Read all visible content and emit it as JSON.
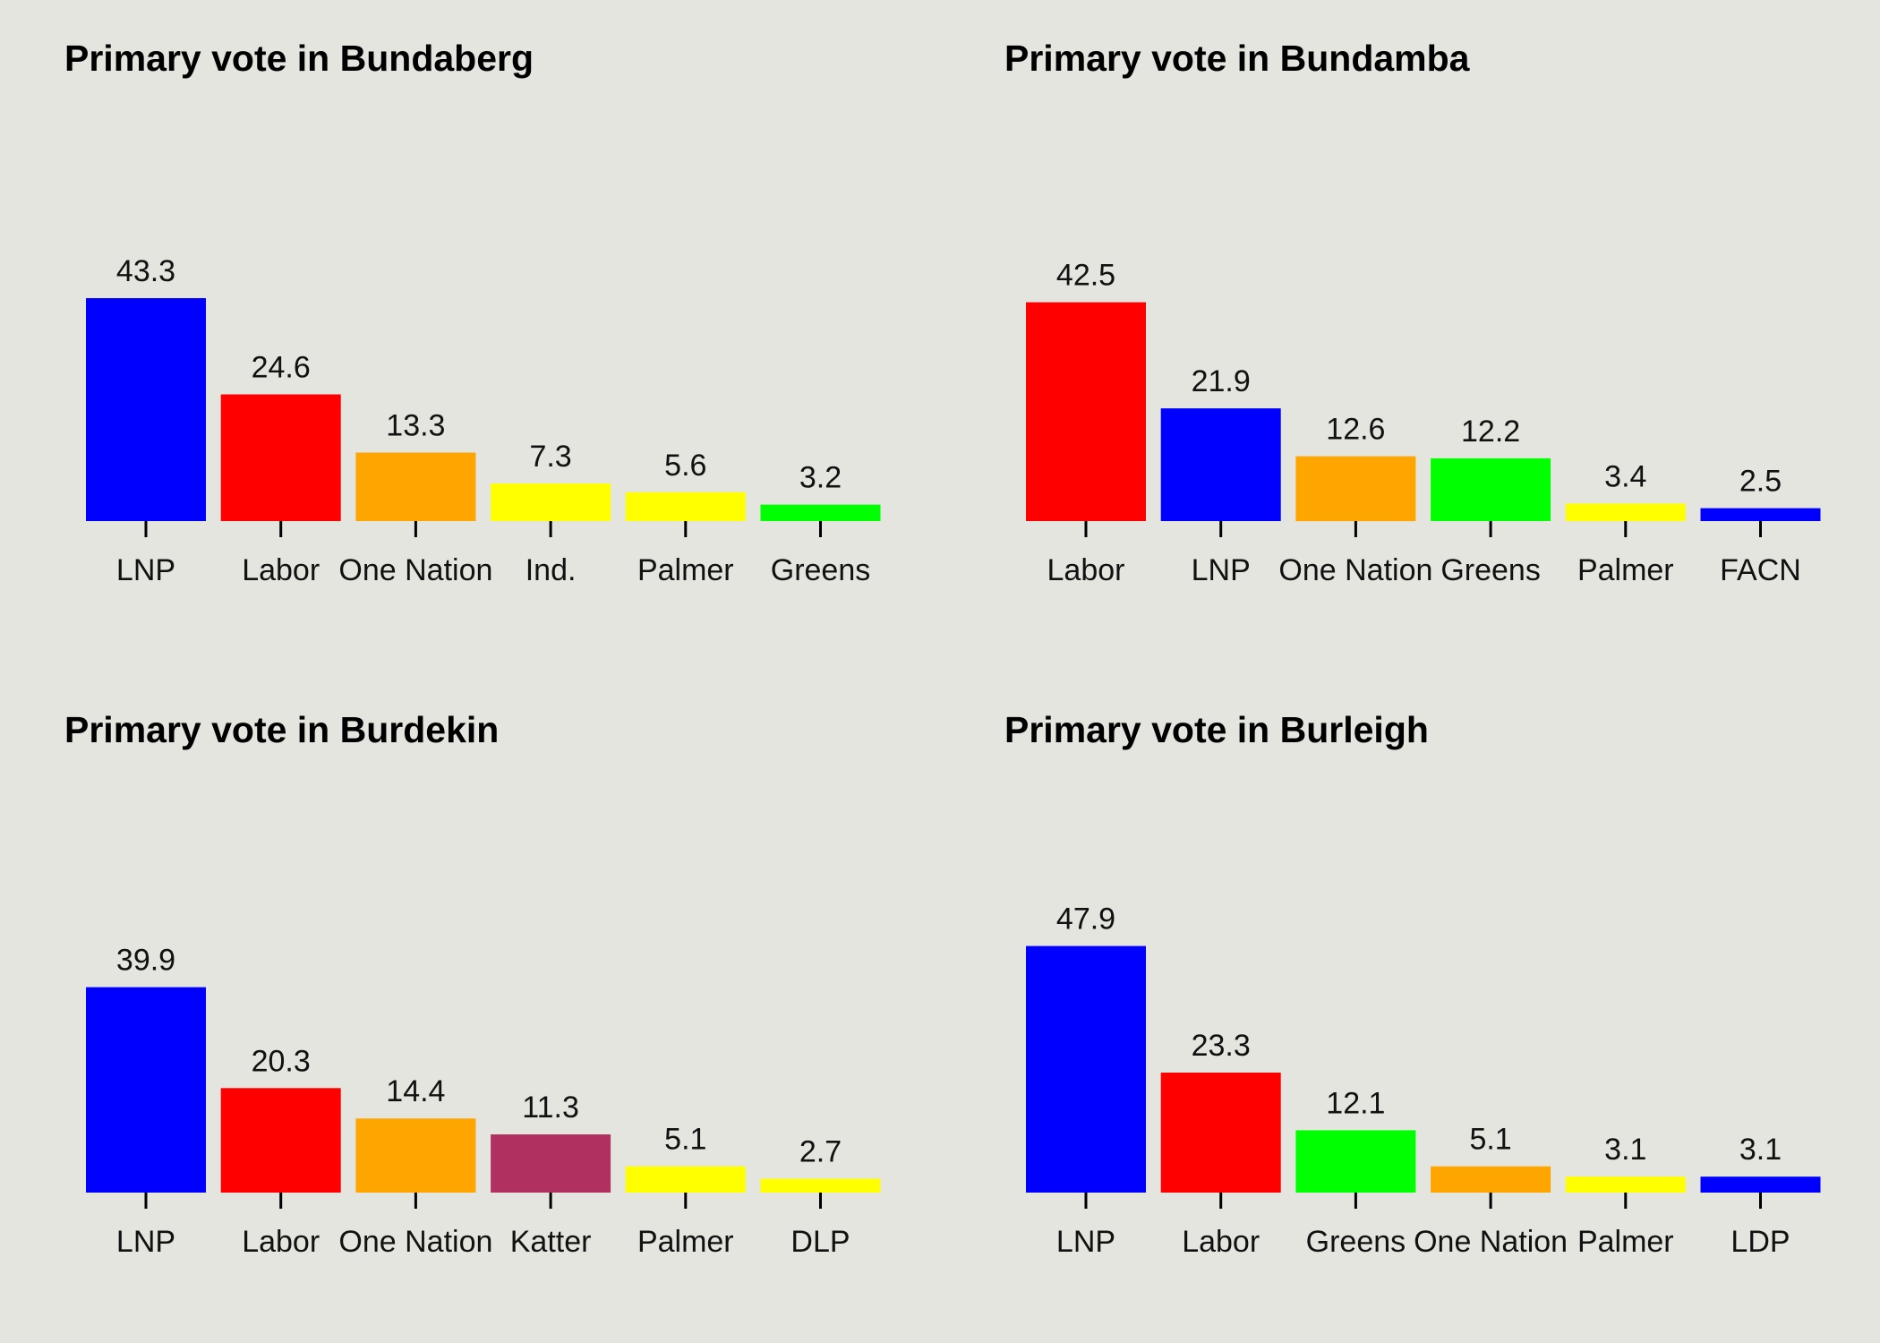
{
  "page": {
    "background": "#e5e5df"
  },
  "chart_data": [
    {
      "type": "bar",
      "title": "Primary vote in Bundaberg",
      "categories": [
        "LNP",
        "Labor",
        "One Nation",
        "Ind.",
        "Palmer",
        "Greens"
      ],
      "values": [
        43.3,
        24.6,
        13.3,
        7.3,
        5.6,
        3.2
      ],
      "colors": [
        "#0000ff",
        "#ff0000",
        "#ffa500",
        "#ffff00",
        "#ffff00",
        "#00ff00"
      ],
      "data_labels": [
        "43.3",
        "24.6",
        "13.3",
        "7.3",
        "5.6",
        "3.2"
      ],
      "ylim": [
        0,
        100
      ],
      "grid": false,
      "legend": "none"
    },
    {
      "type": "bar",
      "title": "Primary vote in Bundamba",
      "categories": [
        "Labor",
        "LNP",
        "One Nation",
        "Greens",
        "Palmer",
        "FACN"
      ],
      "values": [
        42.5,
        21.9,
        12.6,
        12.2,
        3.4,
        2.5
      ],
      "colors": [
        "#ff0000",
        "#0000ff",
        "#ffa500",
        "#00ff00",
        "#ffff00",
        "#0000ff"
      ],
      "data_labels": [
        "42.5",
        "21.9",
        "12.6",
        "12.2",
        "3.4",
        "2.5"
      ],
      "ylim": [
        0,
        100
      ],
      "grid": false,
      "legend": "none"
    },
    {
      "type": "bar",
      "title": "Primary vote in Burdekin",
      "categories": [
        "LNP",
        "Labor",
        "One Nation",
        "Katter",
        "Palmer",
        "DLP"
      ],
      "values": [
        39.9,
        20.3,
        14.4,
        11.3,
        5.1,
        2.7
      ],
      "colors": [
        "#0000ff",
        "#ff0000",
        "#ffa500",
        "#b03060",
        "#ffff00",
        "#ffff00"
      ],
      "data_labels": [
        "39.9",
        "20.3",
        "14.4",
        "11.3",
        "5.1",
        "2.7"
      ],
      "ylim": [
        0,
        100
      ],
      "grid": false,
      "legend": "none"
    },
    {
      "type": "bar",
      "title": "Primary vote in Burleigh",
      "categories": [
        "LNP",
        "Labor",
        "Greens",
        "One Nation",
        "Palmer",
        "LDP"
      ],
      "values": [
        47.9,
        23.3,
        12.1,
        5.1,
        3.1,
        3.1
      ],
      "colors": [
        "#0000ff",
        "#ff0000",
        "#00ff00",
        "#ffa500",
        "#ffff00",
        "#0000ff"
      ],
      "data_labels": [
        "47.9",
        "23.3",
        "12.1",
        "5.1",
        "3.1",
        "3.1"
      ],
      "ylim": [
        0,
        100
      ],
      "grid": false,
      "legend": "none"
    }
  ]
}
